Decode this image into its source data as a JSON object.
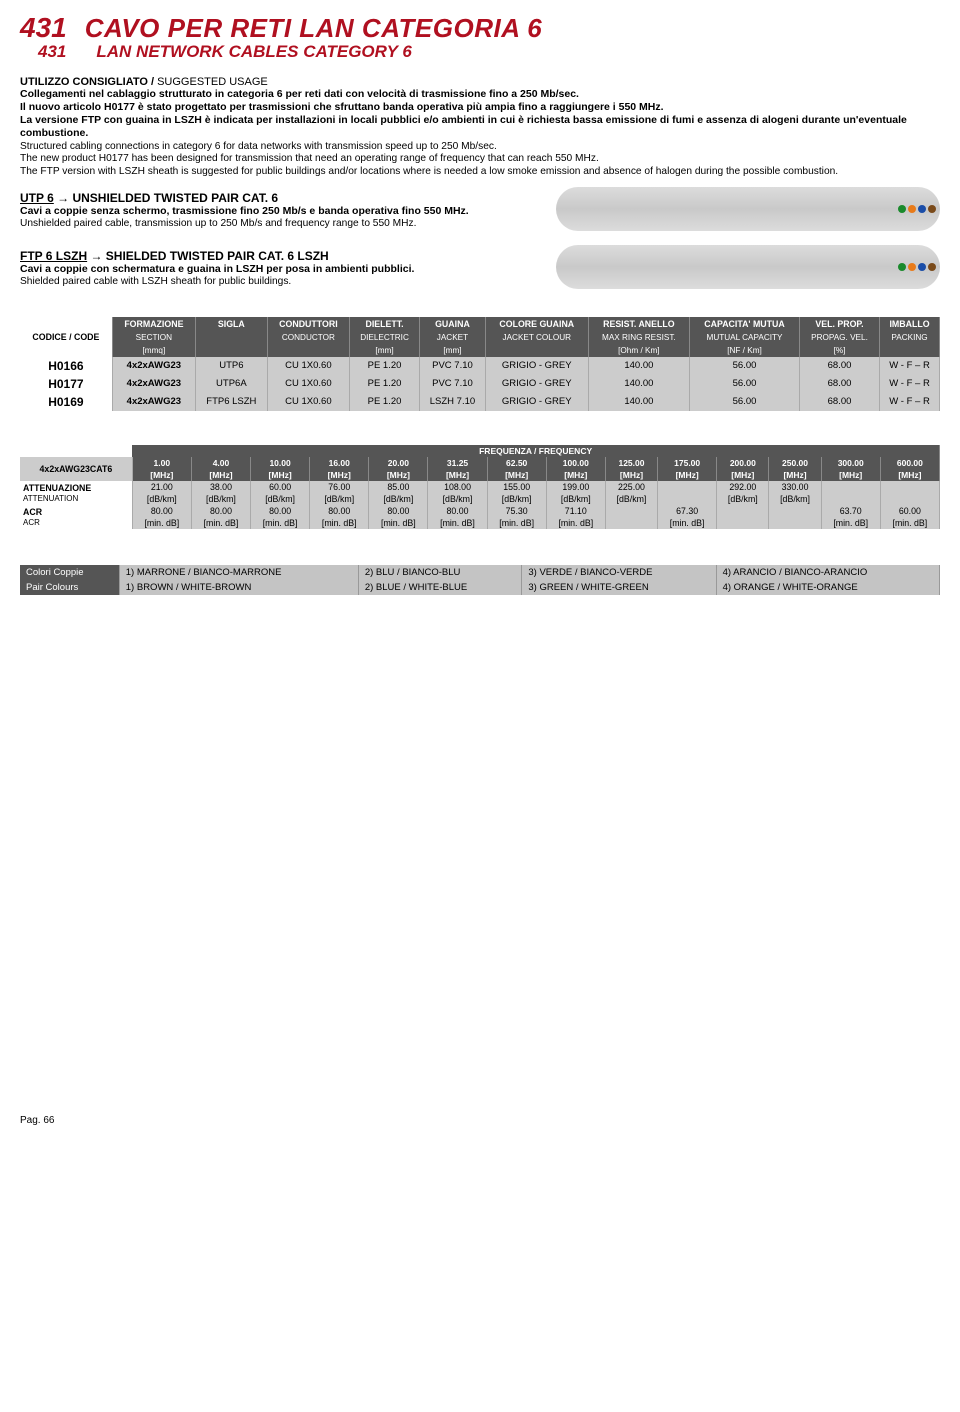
{
  "header": {
    "code": "431",
    "title_it": "CAVO PER RETI LAN CATEGORIA 6",
    "title_en": "LAN NETWORK CABLES CATEGORY 6"
  },
  "usage": {
    "heading_it": "UTILIZZO CONSIGLIATO",
    "heading_en": "SUGGESTED USAGE",
    "p1_it": "Collegamenti nel cablaggio strutturato in categoria 6 per reti dati con velocità di trasmissione fino a 250 Mb/sec.",
    "p2_it": "Il nuovo articolo H0177 è stato progettato per trasmissioni che sfruttano banda operativa più ampia fino a raggiungere i 550 MHz.",
    "p3_it": "La versione FTP con guaina in LSZH è indicata per installazioni in locali pubblici e/o ambienti in cui è richiesta bassa emissione di fumi e assenza di alogeni durante un'eventuale combustione.",
    "p1_en": "Structured cabling connections in category 6 for data networks with transmission speed up to 250 Mb/sec.",
    "p2_en": "The new product H0177 has been designed for transmission that need an operating range of frequency that can reach 550 MHz.",
    "p3_en": "The FTP version with LSZH sheath is suggested for public buildings and/or locations where is needed a low smoke emission and absence of halogen during the possible combustion."
  },
  "utp": {
    "h_label": "UTP 6",
    "h_desc": "UNSHIELDED TWISTED PAIR CAT. 6",
    "line_it": "Cavi a coppie senza schermo, trasmissione fino 250 Mb/s e banda operativa fino 550 MHz.",
    "line_en": "Unshielded paired cable, transmission up to 250 Mb/s and frequency range to 550 MHz."
  },
  "ftp": {
    "h_label": "FTP 6 LSZH",
    "h_desc": "SHIELDED TWISTED PAIR CAT. 6 LSZH",
    "line_it": "Cavi a coppie con schermatura e guaina in LSZH per posa in ambienti pubblici.",
    "line_en": "Shielded paired cable with LSZH sheath for public buildings."
  },
  "spec": {
    "code_label": "CODICE / CODE",
    "cols": [
      {
        "t": "FORMAZIONE",
        "s": "SECTION",
        "u": "[mmq]"
      },
      {
        "t": "SIGLA",
        "s": "",
        "u": ""
      },
      {
        "t": "CONDUTTORI",
        "s": "CONDUCTOR",
        "u": ""
      },
      {
        "t": "DIELETT.",
        "s": "DIELECTRIC",
        "u": "[mm]"
      },
      {
        "t": "GUAINA",
        "s": "JACKET",
        "u": "[mm]"
      },
      {
        "t": "COLORE GUAINA",
        "s": "JACKET COLOUR",
        "u": ""
      },
      {
        "t": "RESIST. ANELLO",
        "s": "MAX RING RESIST.",
        "u": "[Ohm / Km]"
      },
      {
        "t": "CAPACITA' MUTUA",
        "s": "MUTUAL CAPACITY",
        "u": "[NF / Km]"
      },
      {
        "t": "VEL. PROP.",
        "s": "PROPAG. VEL.",
        "u": "[%]"
      },
      {
        "t": "IMBALLO",
        "s": "PACKING",
        "u": ""
      }
    ],
    "rows": [
      {
        "code": "H0166",
        "f": "4x2xAWG23",
        "sg": "UTP6",
        "c": "CU 1X0.60",
        "d": "PE 1.20",
        "g": "PVC 7.10",
        "col": "GRIGIO - GREY",
        "r": "140.00",
        "cm": "56.00",
        "v": "68.00",
        "p": "W - F – R"
      },
      {
        "code": "H0177",
        "f": "4x2xAWG23",
        "sg": "UTP6A",
        "c": "CU 1X0.60",
        "d": "PE 1.20",
        "g": "PVC 7.10",
        "col": "GRIGIO - GREY",
        "r": "140.00",
        "cm": "56.00",
        "v": "68.00",
        "p": "W - F – R"
      },
      {
        "code": "H0169",
        "f": "4x2xAWG23",
        "sg": "FTP6 LSZH",
        "c": "CU 1X0.60",
        "d": "PE 1.20",
        "g": "LSZH 7.10",
        "col": "GRIGIO - GREY",
        "r": "140.00",
        "cm": "56.00",
        "v": "68.00",
        "p": "W - F – R"
      }
    ]
  },
  "freq": {
    "header": "FREQUENZA / FREQUENCY",
    "rowlabel": "4x2xAWG23CAT6",
    "unit_mhz": "[MHz]",
    "unit_db": "[dB/km]",
    "unit_mdb": "[min. dB]",
    "att_it": "ATTENUAZIONE",
    "att_en": "ATTENUATION",
    "acr_it": "ACR",
    "acr_en": "ACR",
    "mhz": [
      "1.00",
      "4.00",
      "10.00",
      "16.00",
      "20.00",
      "31.25",
      "62.50",
      "100.00",
      "125.00",
      "175.00",
      "200.00",
      "250.00",
      "300.00",
      "600.00"
    ],
    "att": [
      "21.00",
      "38.00",
      "60.00",
      "76.00",
      "85.00",
      "108.00",
      "155.00",
      "199.00",
      "225.00",
      "",
      "292.00",
      "330.00",
      "",
      ""
    ],
    "acr": [
      "80.00",
      "80.00",
      "80.00",
      "80.00",
      "80.00",
      "80.00",
      "75.30",
      "71.10",
      "",
      "67.30",
      "",
      "",
      "63.70",
      "60.00"
    ]
  },
  "pairs": {
    "h_it": "Colori Coppie",
    "h_en": "Pair Colours",
    "it": [
      "1) MARRONE / BIANCO-MARRONE",
      "2) BLU / BIANCO-BLU",
      "3) VERDE / BIANCO-VERDE",
      "4) ARANCIO / BIANCO-ARANCIO"
    ],
    "en": [
      "1) BROWN / WHITE-BROWN",
      "2) BLUE / WHITE-BLUE",
      "3) GREEN / WHITE-GREEN",
      "4) ORANGE / WHITE-ORANGE"
    ]
  },
  "page": "Pag. 66"
}
